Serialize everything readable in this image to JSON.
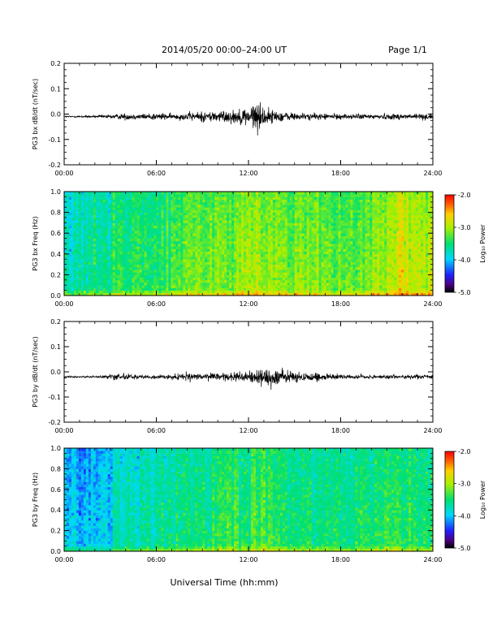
{
  "header": {
    "title": "2014/05/20  00:00–24:00 UT",
    "page": "Page 1/1"
  },
  "footer": {
    "xlabel": "Universal Time (hh:mm)"
  },
  "chart_data": [
    {
      "type": "line",
      "ylabel": "PG3 bx dB/dt (nT/sec)",
      "ylim": [
        -0.2,
        0.2
      ],
      "yticks": [
        "0.2",
        "0.1",
        "0.0",
        "-0.1",
        "-0.2"
      ],
      "xlim": [
        0,
        24
      ],
      "xticks": [
        "00:00",
        "06:00",
        "12:00",
        "18:00",
        "24:00"
      ],
      "color": "#000000",
      "baseline": -0.01,
      "envelope": {
        "hours": [
          0,
          2,
          3,
          4,
          5,
          6,
          7,
          8,
          9,
          10,
          11,
          12,
          12.5,
          13,
          13.5,
          14,
          15,
          16,
          17,
          18,
          20,
          22,
          24
        ],
        "amplitude": [
          0.003,
          0.004,
          0.008,
          0.012,
          0.01,
          0.015,
          0.01,
          0.015,
          0.02,
          0.022,
          0.025,
          0.035,
          0.06,
          0.04,
          0.025,
          0.02,
          0.015,
          0.012,
          0.012,
          0.01,
          0.01,
          0.012,
          0.012
        ]
      }
    },
    {
      "type": "heatmap",
      "ylabel": "PG3 bx Freq (Hz)",
      "ylim": [
        0.0,
        1.0
      ],
      "yticks": [
        "1.0",
        "0.8",
        "0.6",
        "0.4",
        "0.2",
        "0.0"
      ],
      "xlim": [
        0,
        24
      ],
      "xticks": [
        "00:00",
        "06:00",
        "12:00",
        "18:00",
        "24:00"
      ],
      "colorbar": {
        "label": "Log₁₀ Power",
        "ticks": [
          "-2.0",
          "-3.0",
          "-4.0",
          "-5.0"
        ],
        "range": [
          -5.0,
          -2.0
        ]
      },
      "profile": {
        "hours": [
          0,
          1,
          2,
          3,
          4,
          6,
          8,
          10,
          12,
          13,
          14,
          16,
          18,
          20,
          21,
          22,
          23,
          24
        ],
        "mean_log_power": [
          -3.7,
          -3.7,
          -3.6,
          -3.5,
          -3.4,
          -3.4,
          -3.2,
          -3.1,
          -3.0,
          -3.0,
          -3.1,
          -3.1,
          -3.2,
          -3.1,
          -2.9,
          -2.8,
          -2.9,
          -3.0
        ]
      }
    },
    {
      "type": "line",
      "ylabel": "PG3 by dB/dt (nT/sec)",
      "ylim": [
        -0.2,
        0.2
      ],
      "yticks": [
        "0.2",
        "0.1",
        "0.0",
        "-0.1",
        "-0.2"
      ],
      "xlim": [
        0,
        24
      ],
      "xticks": [
        "00:00",
        "06:00",
        "12:00",
        "18:00",
        "24:00"
      ],
      "color": "#000000",
      "baseline": -0.02,
      "envelope": {
        "hours": [
          0,
          2,
          3,
          3.5,
          4,
          5,
          6,
          7,
          8,
          9,
          10,
          11,
          12,
          12.5,
          13,
          13.5,
          14,
          15,
          16,
          16.5,
          17,
          18,
          20,
          22,
          24
        ],
        "amplitude": [
          0.003,
          0.004,
          0.01,
          0.02,
          0.012,
          0.006,
          0.008,
          0.008,
          0.015,
          0.012,
          0.015,
          0.018,
          0.02,
          0.035,
          0.03,
          0.045,
          0.025,
          0.02,
          0.015,
          0.03,
          0.012,
          0.008,
          0.008,
          0.008,
          0.008
        ]
      }
    },
    {
      "type": "heatmap",
      "ylabel": "PG3 by Freq (Hz)",
      "ylim": [
        0.0,
        1.0
      ],
      "yticks": [
        "1.0",
        "0.8",
        "0.6",
        "0.4",
        "0.2",
        "0.0"
      ],
      "xlim": [
        0,
        24
      ],
      "xticks": [
        "00:00",
        "06:00",
        "12:00",
        "18:00",
        "24:00"
      ],
      "colorbar": {
        "label": "Log₁₀ Power",
        "ticks": [
          "-2.0",
          "-3.0",
          "-4.0",
          "-5.0"
        ],
        "range": [
          -5.0,
          -2.0
        ]
      },
      "profile": {
        "hours": [
          0,
          1,
          2,
          3,
          4,
          6,
          8,
          10,
          12,
          13,
          14,
          16,
          18,
          20,
          22,
          24
        ],
        "mean_log_power": [
          -3.9,
          -4.0,
          -3.9,
          -3.8,
          -3.7,
          -3.6,
          -3.5,
          -3.4,
          -3.4,
          -3.3,
          -3.4,
          -3.5,
          -3.5,
          -3.4,
          -3.4,
          -3.4
        ]
      }
    }
  ]
}
